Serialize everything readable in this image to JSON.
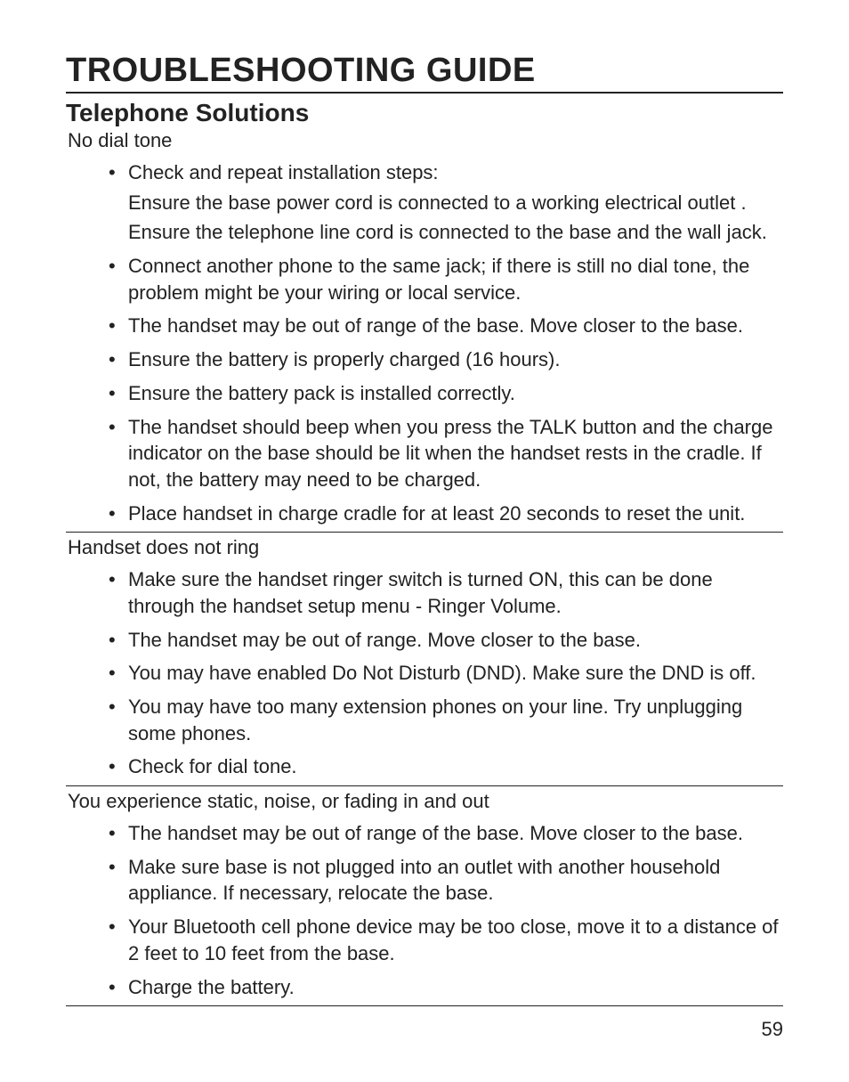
{
  "page": {
    "title": "TROUBLESHOOTING GUIDE",
    "subtitle": "Telephone Solutions",
    "page_number": "59"
  },
  "sections": [
    {
      "problem": "No dial tone",
      "items": [
        {
          "text": "Check and repeat installation steps:",
          "sublines": [
            "Ensure the base power cord is connected to a working electrical outlet .",
            "Ensure the telephone line cord is connected to the base and the wall jack."
          ]
        },
        {
          "text": "Connect another phone to the same jack; if there is still no dial tone, the problem might be your wiring or local service."
        },
        {
          "text": "The handset may be out of range of the base. Move closer to the base."
        },
        {
          "text": "Ensure the battery is properly charged (16 hours)."
        },
        {
          "text": "Ensure the battery pack is installed correctly."
        },
        {
          "text": "The handset should beep when you press the TALK button and the charge indicator on the base should be lit when the handset rests in the cradle. If not, the battery may need to be charged."
        },
        {
          "text": "Place handset in charge cradle for at least 20 seconds to reset the unit."
        }
      ]
    },
    {
      "problem": "Handset does not ring",
      "items": [
        {
          "text": "Make sure the handset ringer switch is turned ON, this can be done through the handset setup menu - Ringer Volume."
        },
        {
          "text": "The handset may be out of range. Move closer to the base."
        },
        {
          "text": "You may have enabled Do Not Disturb (DND). Make sure the DND is off."
        },
        {
          "text": "You may have too many extension phones on your line. Try unplugging some phones."
        },
        {
          "text": "Check for dial tone."
        }
      ]
    },
    {
      "problem": "You experience static, noise, or fading in and out",
      "items": [
        {
          "text": "The handset may be out of range of the base. Move closer to the base."
        },
        {
          "text": "Make sure base is not plugged into an outlet with another household appliance. If necessary, relocate the base."
        },
        {
          "text": "Your Bluetooth cell phone device may be too close, move it to a distance of 2 feet to 10 feet from the base."
        },
        {
          "text": "Charge the battery."
        }
      ]
    }
  ]
}
